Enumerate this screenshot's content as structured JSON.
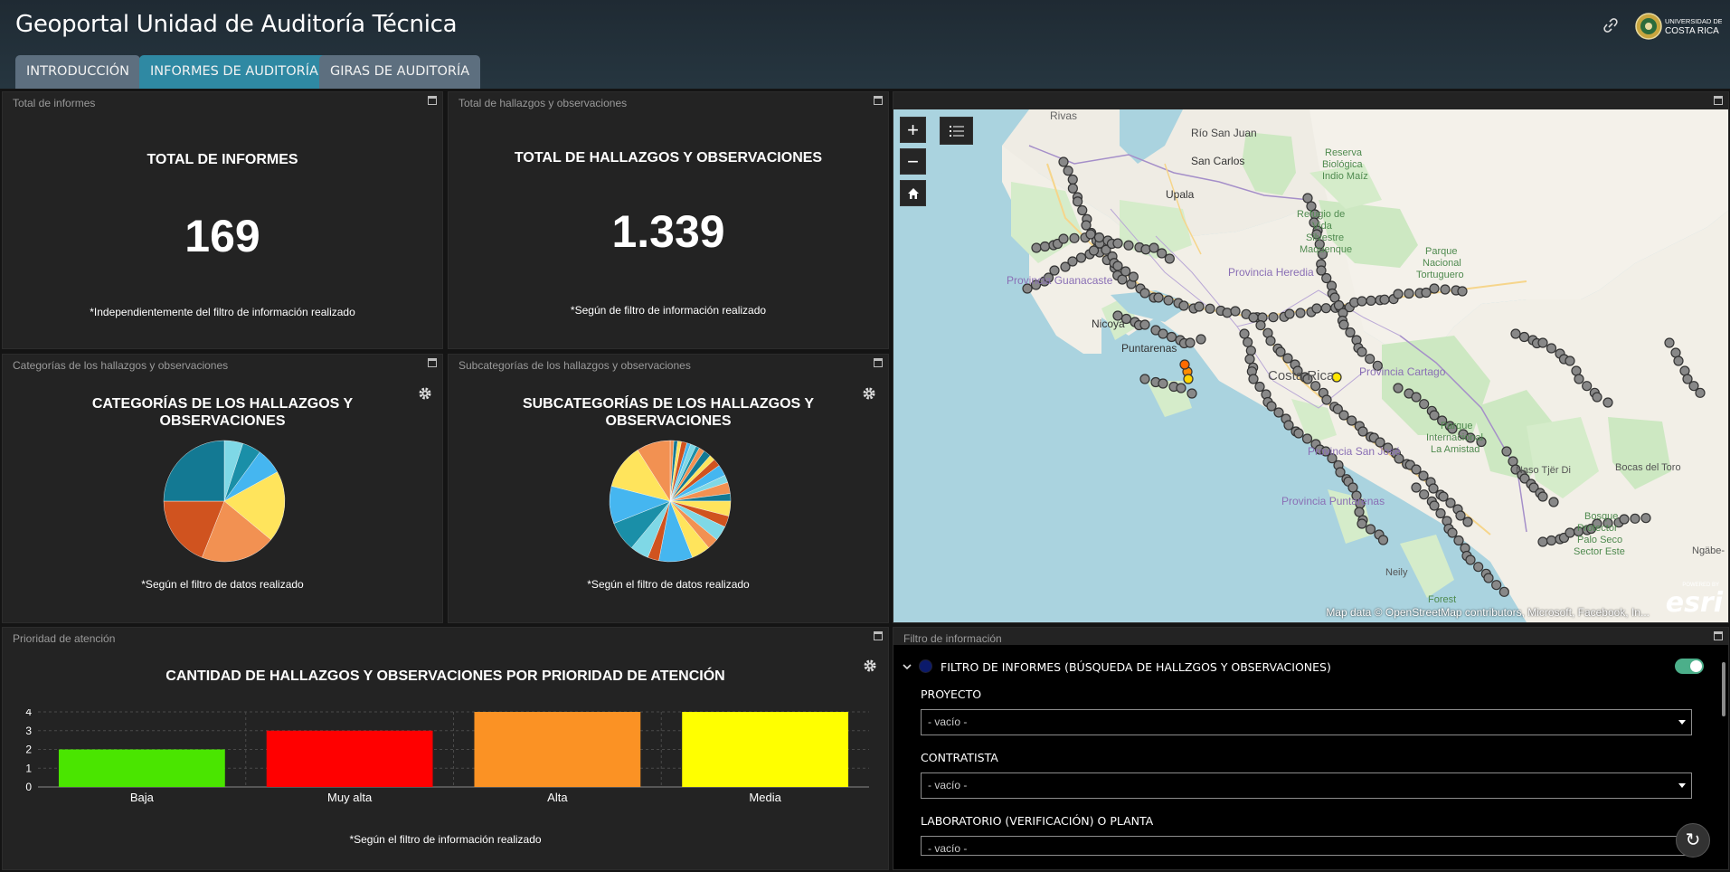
{
  "app": {
    "title": "Geoportal Unidad de Auditoría Técnica",
    "logo_text": [
      "UNIVERSIDAD DE",
      "COSTA RICA"
    ]
  },
  "tabs": [
    {
      "label": "INTRODUCCIÓN",
      "active": false
    },
    {
      "label": "INFORMES DE AUDITORÍA",
      "active": true
    },
    {
      "label": "GIRAS DE AUDITORÍA",
      "active": false
    }
  ],
  "colors": {
    "accent_tab": "#2f89a3",
    "inactive_tab": "#5d6f7f",
    "toggle_on": "#4caf8a"
  },
  "icons": [
    "link-icon",
    "maximize-icon",
    "gear-icon",
    "zoom-in-icon",
    "zoom-out-icon",
    "home-icon",
    "layer-list-icon",
    "chevron-down-icon",
    "refresh-icon"
  ],
  "total_informes": {
    "panel_title": "Total de informes",
    "title": "TOTAL DE INFORMES",
    "value": "169",
    "note": "*Independientemente del filtro de información realizado"
  },
  "total_hallazgos": {
    "panel_title": "Total de hallazgos y observaciones",
    "title": "TOTAL DE HALLAZGOS Y OBSERVACIONES",
    "value": "1.339",
    "note": "*Según de filtro de información realizado"
  },
  "categorias": {
    "panel_title": "Categorías de los hallazgos y observaciones",
    "title_line1": "CATEGORÍAS DE LOS HALLAZGOS Y",
    "title_line2": "OBSERVACIONES",
    "note": "*Según el filtro de datos realizado"
  },
  "subcategorias": {
    "panel_title": "Subcategorías de los hallazgos y observaciones",
    "title_line1": "SUBCATEGORÍAS DE LOS HALLAZGOS Y",
    "title_line2": "OBSERVACIONES",
    "note": "*Según el filtro de datos realizado"
  },
  "prioridad": {
    "panel_title": "Prioridad de atención",
    "note": "*Según el filtro de información realizado"
  },
  "map": {
    "attribution": "Map data © OpenStreetMap contributors, Microsoft, Facebook, In...",
    "powered_by": "POWERED BY",
    "esri": "esri",
    "labels": [
      {
        "text": "Rivas"
      },
      {
        "text": "Río San Juan"
      },
      {
        "text": "San Carlos"
      },
      {
        "text": "Reserva"
      },
      {
        "text": "Biológica"
      },
      {
        "text": "Indio Maíz"
      },
      {
        "text": "Upala"
      },
      {
        "text": "Refugio de"
      },
      {
        "text": "Vida"
      },
      {
        "text": "Silvestre"
      },
      {
        "text": "Maquenque"
      },
      {
        "text": "Parque"
      },
      {
        "text": "Nacional"
      },
      {
        "text": "Tortuguero"
      },
      {
        "text": "Provincia Heredia"
      },
      {
        "text": "Provincia Guanacaste"
      },
      {
        "text": "Nicoya"
      },
      {
        "text": "Puntarenas"
      },
      {
        "text": "Costa Rica"
      },
      {
        "text": "Provincia Cartago"
      },
      {
        "text": "Provincia San José"
      },
      {
        "text": "Provincia Puntarenas"
      },
      {
        "text": "Parque"
      },
      {
        "text": "Internacional"
      },
      {
        "text": "La Amistad"
      },
      {
        "text": "Naso Tjër Di"
      },
      {
        "text": "Bocas del Toro"
      },
      {
        "text": "Bosque"
      },
      {
        "text": "Protector"
      },
      {
        "text": "Palo Seco"
      },
      {
        "text": "Sector Este"
      },
      {
        "text": "Ngäbe-"
      },
      {
        "text": "Neily"
      },
      {
        "text": "Forest"
      }
    ]
  },
  "filter": {
    "panel_title": "Filtro de información",
    "section_title": "FILTRO DE INFORMES (BÚSQUEDA DE HALLZGOS Y OBSERVACIONES)",
    "toggle_on": true,
    "fields": [
      {
        "label": "PROYECTO",
        "value": "- vacío -"
      },
      {
        "label": "CONTRATISTA",
        "value": "- vacío -"
      },
      {
        "label": "LABORATORIO (VERIFICACIÓN) O PLANTA",
        "value": "- vacío -"
      }
    ]
  },
  "chart_data": [
    {
      "type": "pie",
      "title": "CATEGORÍAS DE LOS HALLAZGOS Y OBSERVACIONES",
      "values": [
        5,
        5,
        7,
        19,
        20,
        19,
        25
      ],
      "colors": [
        "#7fd8e6",
        "#1a8fa8",
        "#45b6f0",
        "#ffe45c",
        "#f29152",
        "#d0531f",
        "#137993"
      ]
    },
    {
      "type": "pie",
      "title": "SUBCATEGORÍAS DE LOS HALLAZGOS Y OBSERVACIONES",
      "values": [
        1,
        1,
        1,
        1.5,
        1,
        1.5,
        1,
        1.5,
        2,
        1.5,
        2,
        3,
        2,
        3,
        2,
        4,
        3,
        4,
        3,
        5,
        9,
        3,
        5,
        8,
        10,
        12,
        9
      ],
      "colors": [
        "#f29152",
        "#137993",
        "#ffe45c",
        "#d0531f",
        "#45b6f0",
        "#7fd8e6",
        "#1a8fa8",
        "#f29152",
        "#137993",
        "#ffe45c",
        "#d0531f",
        "#45b6f0",
        "#7fd8e6",
        "#f29152",
        "#137993",
        "#ffe45c",
        "#d0531f",
        "#7fd8e6",
        "#f29152",
        "#ffe45c",
        "#45b6f0",
        "#d0531f",
        "#7fd8e6",
        "#1a8fa8",
        "#45b6f0",
        "#ffe45c",
        "#f29152"
      ]
    },
    {
      "type": "bar",
      "title": "CANTIDAD DE HALLAZGOS Y OBSERVACIONES POR PRIORIDAD DE ATENCIÓN",
      "categories": [
        "Baja",
        "Muy alta",
        "Alta",
        "Media"
      ],
      "values": [
        2,
        3,
        4,
        4
      ],
      "colors": [
        "#4ae500",
        "#ff0000",
        "#fb9224",
        "#ffff00"
      ],
      "ylim": [
        0,
        4
      ],
      "yticks": [
        0,
        1,
        2,
        3,
        4
      ]
    }
  ]
}
